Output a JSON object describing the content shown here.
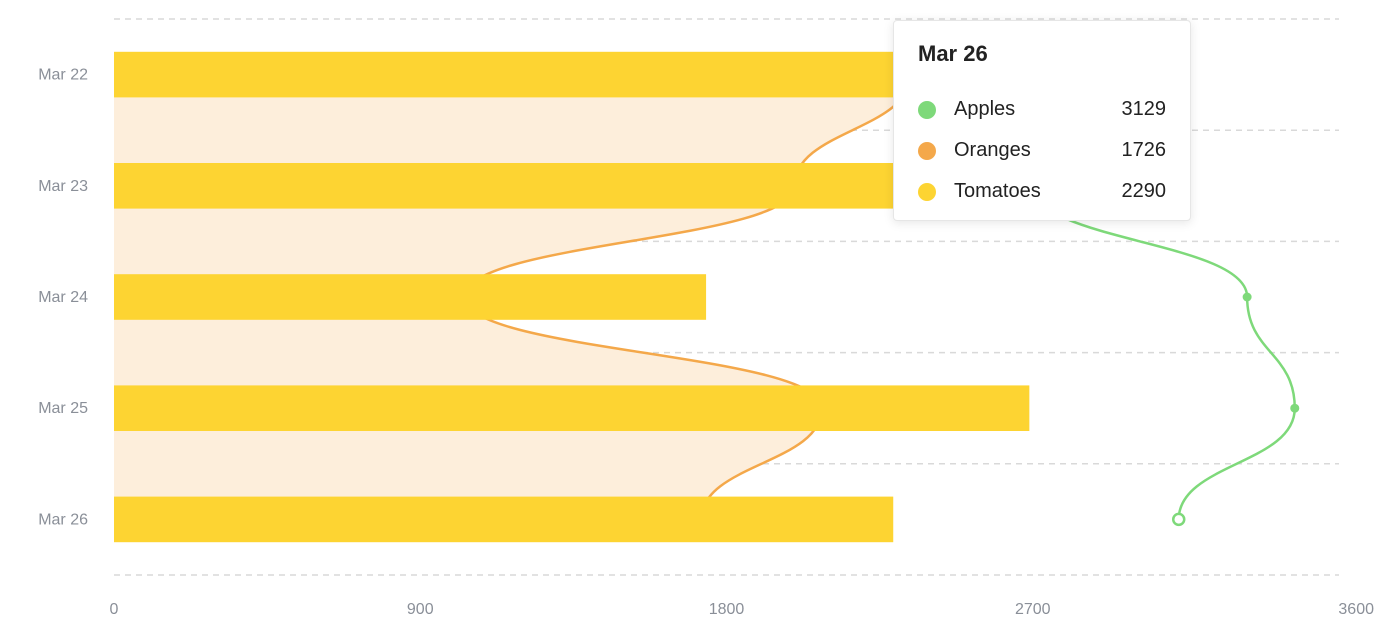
{
  "chart_data": {
    "type": "bar",
    "orientation": "horizontal",
    "categories": [
      "Mar 22",
      "Mar 23",
      "Mar 24",
      "Mar 25",
      "Mar 26"
    ],
    "series": [
      {
        "name": "Apples",
        "type": "line",
        "color": "#7ed97a",
        "values": [
          2480,
          2700,
          3330,
          3470,
          3129
        ]
      },
      {
        "name": "Oranges",
        "type": "area",
        "color": "#f4a84a",
        "fill": "#fdeedb",
        "values": [
          2340,
          2000,
          1030,
          2080,
          1726
        ]
      },
      {
        "name": "Tomatoes",
        "type": "bar",
        "color": "#fdd432",
        "values": [
          2500,
          2420,
          1740,
          2690,
          2290
        ]
      }
    ],
    "xlim": [
      0,
      3600
    ],
    "x_ticks": [
      "0",
      "900",
      "1800",
      "2700",
      "3600"
    ],
    "grid": true,
    "highlighted_category": "Mar 26"
  },
  "tooltip": {
    "title": "Mar 26",
    "rows": [
      {
        "name": "Apples",
        "value": "3129",
        "color": "#7ed97a"
      },
      {
        "name": "Oranges",
        "value": "1726",
        "color": "#f4a84a"
      },
      {
        "name": "Tomatoes",
        "value": "2290",
        "color": "#fdd432"
      }
    ]
  }
}
